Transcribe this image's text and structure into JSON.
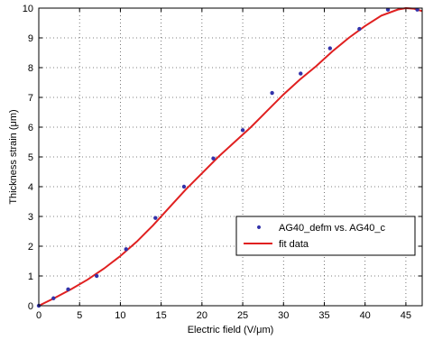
{
  "chart_data": {
    "type": "scatter",
    "title": "",
    "xlabel": "Electric field (V/μm)",
    "ylabel": "Thickness strain (μm)",
    "xlim": [
      0,
      47
    ],
    "ylim": [
      0,
      10
    ],
    "xticks": [
      "0",
      "5",
      "10",
      "15",
      "20",
      "25",
      "30",
      "35",
      "40",
      "45"
    ],
    "yticks": [
      "0",
      "1",
      "2",
      "3",
      "4",
      "5",
      "6",
      "7",
      "8",
      "9",
      "10"
    ],
    "grid": true,
    "legend_position": "lower-right",
    "series": [
      {
        "name": "AG40_defm vs. AG40_c",
        "type": "scatter",
        "color": "#3333aa",
        "x": [
          0,
          1.8,
          3.6,
          7.1,
          10.7,
          14.3,
          17.8,
          21.4,
          25.0,
          28.6,
          32.1,
          35.7,
          39.3,
          42.8,
          46.4
        ],
        "y": [
          0.0,
          0.25,
          0.55,
          1.0,
          1.9,
          2.95,
          4.0,
          4.95,
          5.9,
          7.15,
          7.8,
          8.65,
          9.3,
          9.95,
          9.95
        ]
      },
      {
        "name": "fit data",
        "type": "line",
        "color": "#e02020",
        "x": [
          0,
          2,
          4,
          6,
          8,
          10,
          12,
          14,
          16,
          18,
          20,
          22,
          24,
          26,
          28,
          30,
          32,
          34,
          36,
          38,
          40,
          42,
          44,
          45,
          46,
          47
        ],
        "y": [
          0.0,
          0.27,
          0.56,
          0.88,
          1.25,
          1.67,
          2.15,
          2.7,
          3.3,
          3.9,
          4.45,
          5.0,
          5.5,
          6.0,
          6.55,
          7.1,
          7.6,
          8.05,
          8.55,
          9.0,
          9.4,
          9.75,
          9.95,
          10.0,
          9.98,
          9.9
        ]
      }
    ]
  }
}
